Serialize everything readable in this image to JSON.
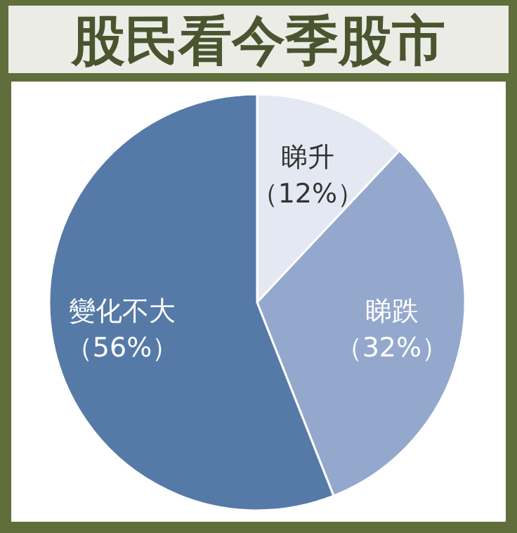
{
  "chart_data": {
    "type": "pie",
    "title": "股民看今季股市",
    "categories": [
      "睇升",
      "睇跌",
      "變化不大"
    ],
    "values": [
      12,
      32,
      56
    ],
    "value_labels": [
      "（12%）",
      "（32%）",
      "（56%）"
    ],
    "colors": [
      "#e4e8f2",
      "#93a8cc",
      "#567aa7"
    ]
  }
}
